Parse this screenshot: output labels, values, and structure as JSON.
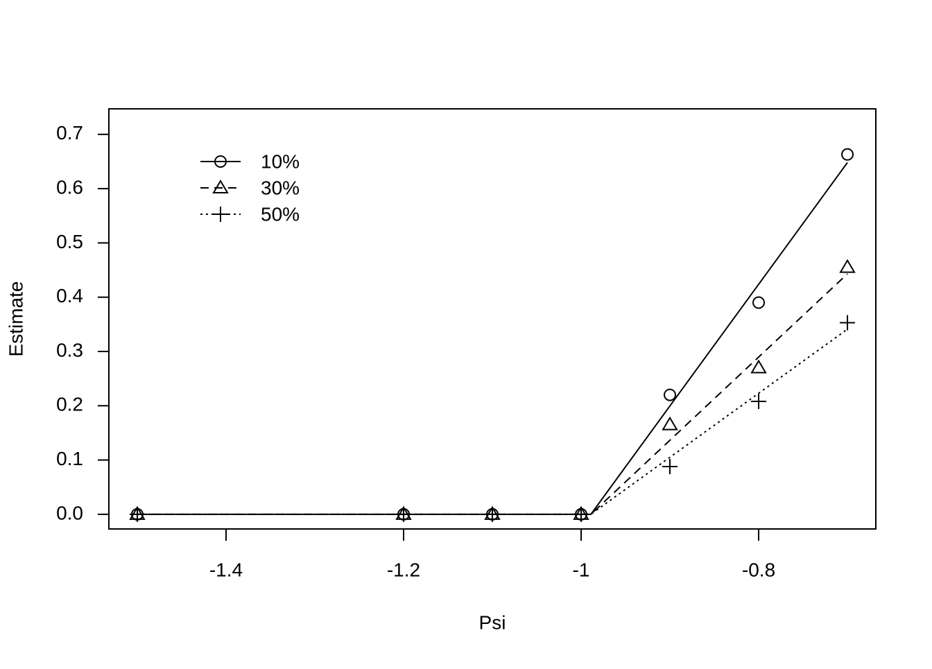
{
  "chart_data": {
    "type": "line",
    "x_label": "Psi",
    "y_label": "Estimate",
    "x": [
      -1.5,
      -1.2,
      -1.1,
      -1,
      -0.9,
      -0.8,
      -0.7
    ],
    "fit_x": [
      -1.5,
      -0.989,
      -0.7
    ],
    "series": [
      {
        "name": "10%",
        "color": "#000000",
        "line_style": "solid",
        "marker": "circle",
        "values": [
          0,
          0,
          0,
          0,
          0.22,
          0.39,
          0.663
        ],
        "fit": [
          0,
          0,
          0.648
        ]
      },
      {
        "name": "30%",
        "color": "#000000",
        "line_style": "dashed",
        "marker": "triangle",
        "values": [
          0,
          0,
          0,
          0,
          0.165,
          0.27,
          0.455
        ],
        "fit": [
          0,
          0,
          0.443
        ]
      },
      {
        "name": "50%",
        "color": "#000000",
        "line_style": "dotted",
        "marker": "plus",
        "values": [
          0,
          0,
          0,
          0,
          0.088,
          0.208,
          0.353
        ],
        "fit": [
          0,
          0,
          0.341
        ]
      }
    ],
    "xlim": [
      -1.532,
      -0.668
    ],
    "ylim": [
      -0.027,
      0.747
    ],
    "xticks": [
      -1.4,
      -1.2,
      -1,
      -0.8
    ],
    "yticks": [
      {
        "value": 0,
        "label": "0.0"
      },
      0.1,
      0.2,
      0.3,
      0.4,
      0.5,
      0.6,
      0.7
    ],
    "legend": "top-left",
    "grid": false
  }
}
